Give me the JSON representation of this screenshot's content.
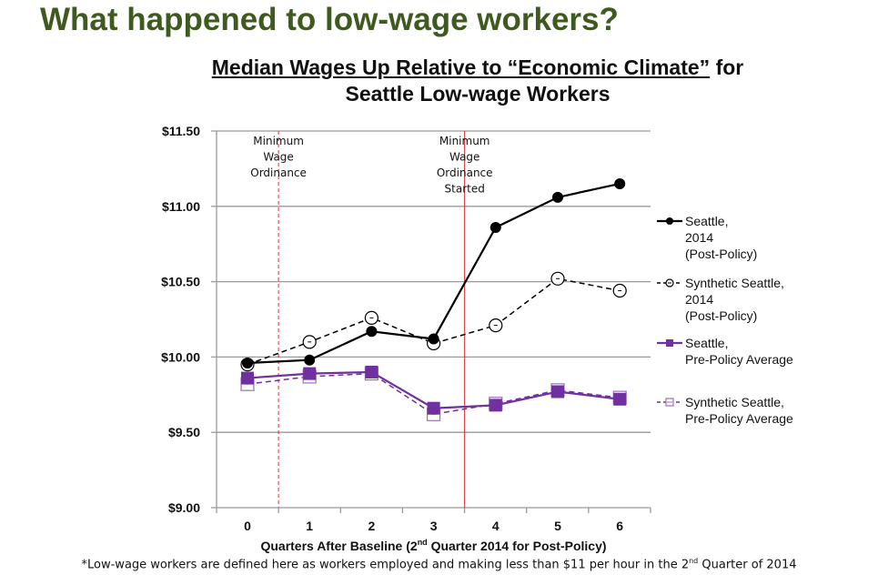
{
  "slide_title": "What happened to low-wage workers?",
  "footnote": "*Low-wage workers are defined here as workers employed and making less than $11 per hour in the 2nd Quarter of 2014",
  "footnote_parts": {
    "pre": "*Low-wage workers are defined here as workers employed and making less than $11 per hour in the 2",
    "sup": "nd",
    "post": " Quarter of 2014"
  },
  "chart_data": {
    "type": "line",
    "title_line1_underlined": "Median Wages Up Relative to “Economic Climate”",
    "title_line1_rest": " for",
    "title_line2": "Seattle Low-wage Workers",
    "xlabel_parts": {
      "pre": "Quarters After Baseline (2",
      "sup": "nd",
      "post": " Quarter 2014 for Post-Policy)"
    },
    "x": [
      0,
      1,
      2,
      3,
      4,
      5,
      6
    ],
    "x_tick_labels": [
      "0",
      "1",
      "2",
      "3",
      "4",
      "5",
      "6"
    ],
    "ylim": [
      9.0,
      11.5
    ],
    "y_ticks": [
      9.0,
      9.5,
      10.0,
      10.5,
      11.0,
      11.5
    ],
    "y_tick_labels": [
      "$9.00",
      "$9.50",
      "$10.00",
      "$10.50",
      "$11.00",
      "$11.50"
    ],
    "grid": "horizontal",
    "legend_position": "right",
    "series": [
      {
        "name": "Seattle, 2014 (Post-Policy)",
        "legend_lines": [
          "Seattle,",
          "2014",
          "(Post-Policy)"
        ],
        "color": "#000000",
        "style": "solid",
        "marker": "filled-circle",
        "values": [
          9.96,
          9.98,
          10.17,
          10.12,
          10.86,
          11.06,
          11.15
        ]
      },
      {
        "name": "Synthetic Seattle, 2014 (Post-Policy)",
        "legend_lines": [
          "Synthetic Seattle,",
          "2014",
          "(Post-Policy)"
        ],
        "color": "#000000",
        "style": "dashed",
        "marker": "open-circle",
        "values": [
          9.95,
          10.1,
          10.26,
          10.09,
          10.21,
          10.52,
          10.44
        ]
      },
      {
        "name": "Seattle, Pre-Policy Average",
        "legend_lines": [
          "Seattle,",
          "Pre-Policy Average"
        ],
        "color": "#7030a0",
        "style": "solid",
        "marker": "filled-square",
        "values": [
          9.86,
          9.89,
          9.9,
          9.66,
          9.68,
          9.77,
          9.72
        ]
      },
      {
        "name": "Synthetic Seattle, Pre-Policy Average",
        "legend_lines": [
          "Synthetic Seattle,",
          "Pre-Policy Average"
        ],
        "color": "#7030a0",
        "style": "dashed",
        "marker": "open-square",
        "values": [
          9.82,
          9.87,
          9.89,
          9.62,
          9.69,
          9.78,
          9.73
        ]
      }
    ],
    "annotations": [
      {
        "x": 0.5,
        "style": "dashed",
        "color": "#e03030",
        "lines": [
          "Minimum",
          "Wage",
          "Ordinance"
        ]
      },
      {
        "x": 3.5,
        "style": "solid",
        "color": "#d02020",
        "lines": [
          "Minimum",
          "Wage",
          "Ordinance",
          "Started"
        ]
      }
    ]
  }
}
